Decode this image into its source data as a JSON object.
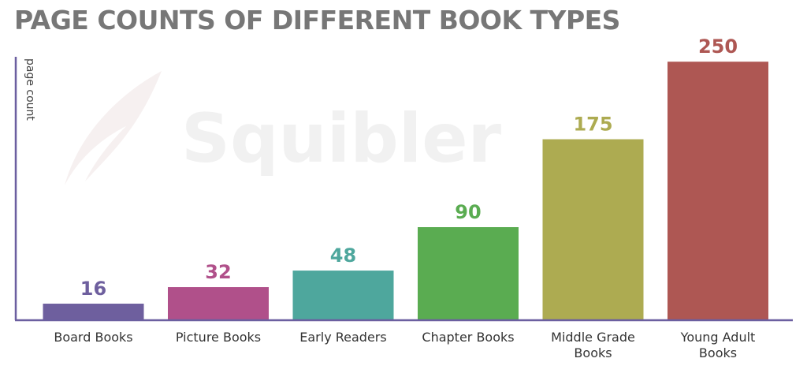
{
  "title": "PAGE COUNTS OF DIFFERENT BOOK TYPES",
  "watermark": "Squibler",
  "colors": {
    "axis": "#6b5fa0",
    "title": "#777777"
  },
  "chart_data": {
    "type": "bar",
    "title": "PAGE COUNTS OF DIFFERENT BOOK TYPES",
    "xlabel": "",
    "ylabel": "page count",
    "ylim": [
      0,
      270
    ],
    "grid": false,
    "legend": "none",
    "categories": [
      [
        "Board Books"
      ],
      [
        "Picture Books"
      ],
      [
        "Early Readers"
      ],
      [
        "Chapter Books"
      ],
      [
        "Middle Grade",
        "Books"
      ],
      [
        "Young Adult",
        "Books"
      ]
    ],
    "values": [
      16,
      32,
      48,
      90,
      175,
      250
    ],
    "bar_colors": [
      "#6e5f9e",
      "#b0508a",
      "#4ea79d",
      "#5aac51",
      "#adab51",
      "#ae5753"
    ],
    "label_colors": [
      "#6e5f9e",
      "#b0508a",
      "#4ea79d",
      "#5aac51",
      "#adab51",
      "#ae5753"
    ]
  }
}
